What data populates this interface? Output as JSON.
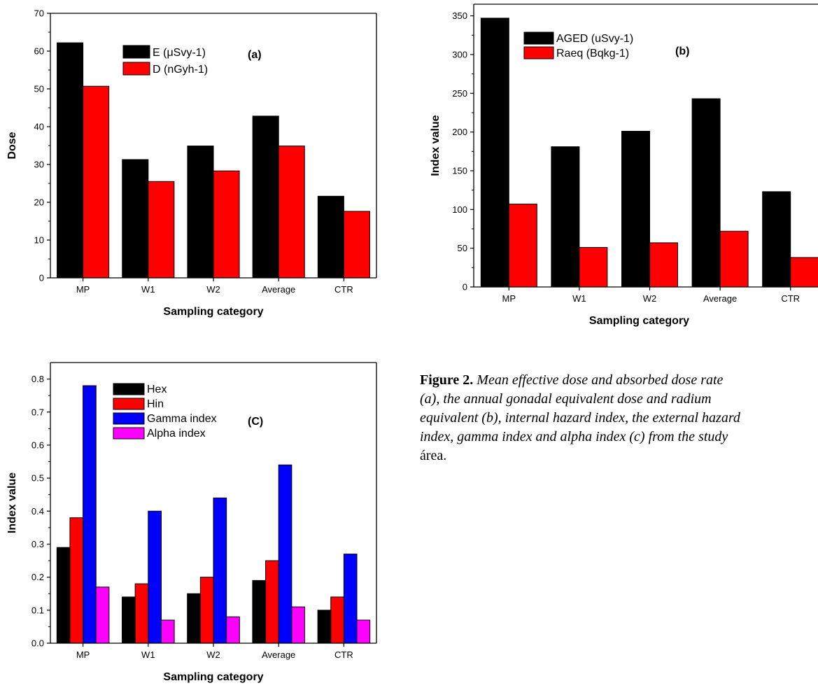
{
  "chart_data": [
    {
      "panel": "(a)",
      "type": "bar",
      "categories": [
        "MP",
        "W1",
        "W2",
        "Average",
        "CTR"
      ],
      "series": [
        {
          "name": "E (μSvy-1)",
          "color": "#000000",
          "values": [
            62.2,
            31.3,
            34.9,
            42.8,
            21.6
          ]
        },
        {
          "name": "D  (nGyh-1)",
          "color": "#ff0000",
          "values": [
            50.7,
            25.5,
            28.3,
            34.9,
            17.6
          ]
        }
      ],
      "xlabel": "Sampling category",
      "ylabel": "Dose",
      "ylim": [
        0,
        70
      ],
      "yticks": [
        "0",
        "10",
        "20",
        "30",
        "40",
        "50",
        "60",
        "70"
      ],
      "grid": false,
      "legend_position": "top-center"
    },
    {
      "panel": "(b)",
      "type": "bar",
      "categories": [
        "MP",
        "W1",
        "W2",
        "Average",
        "CTR"
      ],
      "series": [
        {
          "name": "AGED (uSvy-1)",
          "color": "#000000",
          "values": [
            347,
            181,
            201,
            243,
            123
          ]
        },
        {
          "name": "Raeq (Bqkg-1)",
          "color": "#ff0000",
          "values": [
            107,
            51,
            57,
            72,
            38
          ]
        }
      ],
      "xlabel": "Sampling category",
      "ylabel": "Index value",
      "ylim": [
        0,
        365
      ],
      "yticks": [
        "0",
        "50",
        "100",
        "150",
        "200",
        "250",
        "300",
        "350"
      ],
      "grid": false,
      "legend_position": "top-left"
    },
    {
      "panel": "(C)",
      "type": "bar",
      "categories": [
        "MP",
        "W1",
        "W2",
        "Average",
        "CTR"
      ],
      "series": [
        {
          "name": "Hex",
          "color": "#000000",
          "values": [
            0.29,
            0.14,
            0.15,
            0.19,
            0.1
          ]
        },
        {
          "name": "Hin",
          "color": "#ff0000",
          "values": [
            0.38,
            0.18,
            0.2,
            0.25,
            0.14
          ]
        },
        {
          "name": "Gamma index",
          "color": "#0000ff",
          "values": [
            0.78,
            0.4,
            0.44,
            0.54,
            0.27
          ]
        },
        {
          "name": "Alpha index",
          "color": "#ff00ff",
          "values": [
            0.17,
            0.07,
            0.08,
            0.11,
            0.07
          ]
        }
      ],
      "xlabel": "Sampling category",
      "ylabel": "Index value",
      "ylim": [
        0,
        0.85
      ],
      "yticks": [
        "0.0",
        "0.1",
        "0.2",
        "0.3",
        "0.4",
        "0.5",
        "0.6",
        "0.7",
        "0.8"
      ],
      "grid": false,
      "legend_position": "top-center"
    }
  ],
  "caption": {
    "lead": "Figure 2.",
    "lines": [
      " Mean effective dose and absorbed dose rate",
      "(a), the annual gonadal equivalent dose and radium",
      "equivalent (b), internal hazard index, the external hazard",
      "index, gamma index and alpha index (c) from the study"
    ],
    "tail": "área."
  }
}
